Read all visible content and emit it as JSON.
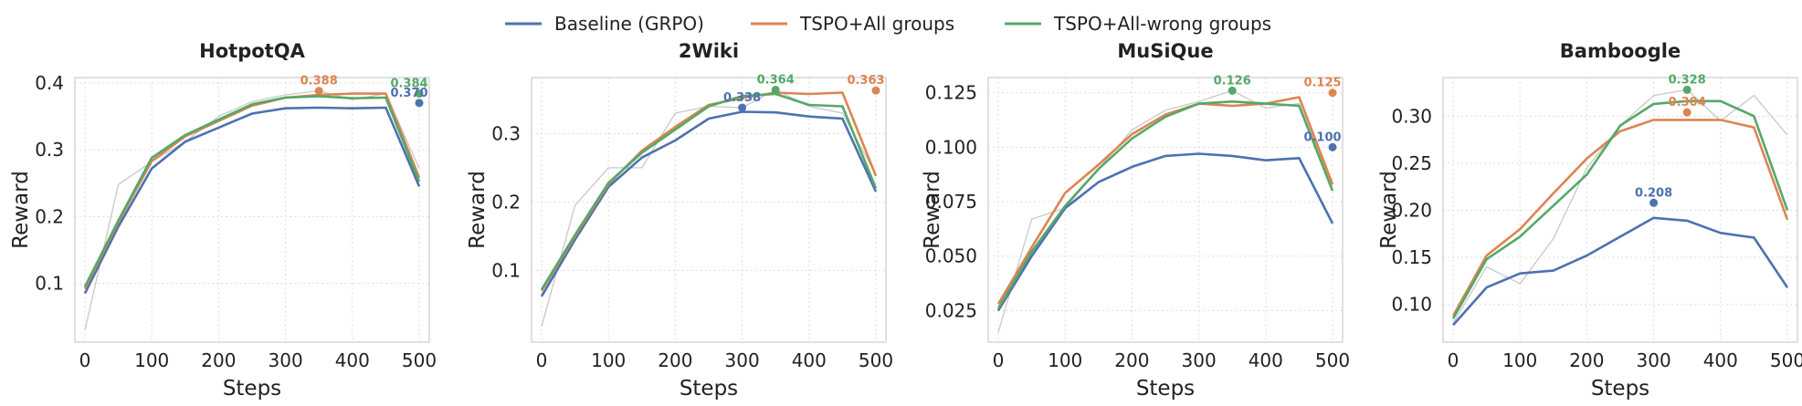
{
  "legend": [
    {
      "name": "Baseline (GRPO)",
      "color": "#4c72b0"
    },
    {
      "name": "TSPO+All groups",
      "color": "#dd8452"
    },
    {
      "name": "TSPO+All-wrong groups",
      "color": "#55a868"
    }
  ],
  "chart_data": [
    {
      "type": "line",
      "title": "HotpotQA",
      "xlabel": "Steps",
      "ylabel": "Reward",
      "xlim": [
        -15,
        515
      ],
      "ylim": [
        0.012,
        0.408
      ],
      "xticks": [
        0,
        100,
        200,
        300,
        400,
        500
      ],
      "yticks": [
        0.1,
        0.2,
        0.3,
        0.4
      ],
      "ytick_labels": [
        "0.1",
        "0.2",
        "0.3",
        "0.4"
      ],
      "x": [
        0,
        50,
        100,
        150,
        200,
        250,
        300,
        350,
        400,
        450,
        500
      ],
      "series": [
        {
          "name": "Baseline (GRPO)",
          "values": [
            0.085,
            0.185,
            0.272,
            0.312,
            0.333,
            0.354,
            0.362,
            0.363,
            0.362,
            0.363,
            0.245
          ]
        },
        {
          "name": "TSPO+All groups",
          "values": [
            0.092,
            0.192,
            0.283,
            0.32,
            0.343,
            0.366,
            0.378,
            0.382,
            0.384,
            0.384,
            0.258
          ]
        },
        {
          "name": "TSPO+All-wrong groups",
          "values": [
            0.095,
            0.194,
            0.288,
            0.322,
            0.345,
            0.368,
            0.378,
            0.38,
            0.377,
            0.378,
            0.252
          ]
        }
      ],
      "raw": [
        0.03,
        0.248,
        0.282,
        0.312,
        0.35,
        0.372,
        0.382,
        0.388,
        0.375,
        0.384,
        0.272
      ],
      "annotations": [
        {
          "series": "TSPO+All groups",
          "x": 350,
          "y": 0.388,
          "label": "0.388"
        },
        {
          "series": "TSPO+All-wrong groups",
          "x": 500,
          "y": 0.384,
          "label": "0.384"
        },
        {
          "series": "Baseline (GRPO)",
          "x": 500,
          "y": 0.37,
          "label": "0.370"
        }
      ]
    },
    {
      "type": "line",
      "title": "2Wiki",
      "xlabel": "Steps",
      "ylabel": "Reward",
      "xlim": [
        -15,
        515
      ],
      "ylim": [
        -0.005,
        0.382
      ],
      "xticks": [
        0,
        100,
        200,
        300,
        400,
        500
      ],
      "yticks": [
        0.1,
        0.2,
        0.3
      ],
      "ytick_labels": [
        "0.1",
        "0.2",
        "0.3"
      ],
      "x": [
        0,
        50,
        100,
        150,
        200,
        250,
        300,
        350,
        400,
        450,
        500
      ],
      "series": [
        {
          "name": "Baseline (GRPO)",
          "values": [
            0.062,
            0.145,
            0.222,
            0.265,
            0.29,
            0.322,
            0.332,
            0.331,
            0.325,
            0.322,
            0.215
          ]
        },
        {
          "name": "TSPO+All groups",
          "values": [
            0.07,
            0.15,
            0.226,
            0.275,
            0.31,
            0.342,
            0.352,
            0.36,
            0.358,
            0.36,
            0.238
          ]
        },
        {
          "name": "TSPO+All-wrong groups",
          "values": [
            0.072,
            0.152,
            0.228,
            0.272,
            0.306,
            0.34,
            0.355,
            0.358,
            0.342,
            0.34,
            0.22
          ]
        }
      ],
      "raw": [
        0.018,
        0.195,
        0.25,
        0.25,
        0.33,
        0.34,
        0.338,
        0.364,
        0.34,
        0.33,
        0.24
      ],
      "annotations": [
        {
          "series": "Baseline (GRPO)",
          "x": 300,
          "y": 0.338,
          "label": "0.338"
        },
        {
          "series": "TSPO+All-wrong groups",
          "x": 350,
          "y": 0.364,
          "label": "0.364"
        },
        {
          "series": "TSPO+All groups",
          "x": 500,
          "y": 0.363,
          "label": "0.363"
        }
      ]
    },
    {
      "type": "line",
      "title": "MuSiQue",
      "xlabel": "Steps",
      "ylabel": "Reward",
      "xlim": [
        -15,
        515
      ],
      "ylim": [
        0.0105,
        0.132
      ],
      "xticks": [
        0,
        100,
        200,
        300,
        400,
        500
      ],
      "yticks": [
        0.025,
        0.05,
        0.075,
        0.1,
        0.125
      ],
      "ytick_labels": [
        "0.025",
        "0.050",
        "0.075",
        "0.100",
        "0.125"
      ],
      "x": [
        0,
        50,
        100,
        150,
        200,
        250,
        300,
        350,
        400,
        450,
        500
      ],
      "series": [
        {
          "name": "Baseline (GRPO)",
          "values": [
            0.025,
            0.05,
            0.072,
            0.084,
            0.091,
            0.096,
            0.097,
            0.096,
            0.094,
            0.095,
            0.065
          ]
        },
        {
          "name": "TSPO+All groups",
          "values": [
            0.028,
            0.054,
            0.079,
            0.092,
            0.106,
            0.115,
            0.12,
            0.119,
            0.12,
            0.123,
            0.083
          ]
        },
        {
          "name": "TSPO+All-wrong groups",
          "values": [
            0.026,
            0.052,
            0.073,
            0.09,
            0.104,
            0.114,
            0.12,
            0.121,
            0.12,
            0.119,
            0.08
          ]
        }
      ],
      "raw": [
        0.015,
        0.067,
        0.072,
        0.09,
        0.108,
        0.117,
        0.121,
        0.126,
        0.118,
        0.12,
        0.082
      ],
      "annotations": [
        {
          "series": "TSPO+All-wrong groups",
          "x": 350,
          "y": 0.126,
          "label": "0.126"
        },
        {
          "series": "TSPO+All groups",
          "x": 500,
          "y": 0.125,
          "label": "0.125"
        },
        {
          "series": "Baseline (GRPO)",
          "x": 500,
          "y": 0.1,
          "label": "0.100"
        }
      ]
    },
    {
      "type": "line",
      "title": "Bamboogle",
      "xlabel": "Steps",
      "ylabel": "Reward",
      "xlim": [
        -15,
        515
      ],
      "ylim": [
        0.06,
        0.341
      ],
      "xticks": [
        0,
        100,
        200,
        300,
        400,
        500
      ],
      "yticks": [
        0.1,
        0.15,
        0.2,
        0.25,
        0.3
      ],
      "ytick_labels": [
        "0.10",
        "0.15",
        "0.20",
        "0.25",
        "0.30"
      ],
      "x": [
        0,
        50,
        100,
        150,
        200,
        250,
        300,
        350,
        400,
        450,
        500
      ],
      "series": [
        {
          "name": "Baseline (GRPO)",
          "values": [
            0.078,
            0.118,
            0.133,
            0.136,
            0.152,
            0.172,
            0.192,
            0.189,
            0.176,
            0.171,
            0.118
          ]
        },
        {
          "name": "TSPO+All groups",
          "values": [
            0.088,
            0.152,
            0.18,
            0.218,
            0.255,
            0.284,
            0.296,
            0.296,
            0.296,
            0.288,
            0.19
          ]
        },
        {
          "name": "TSPO+All-wrong groups",
          "values": [
            0.085,
            0.148,
            0.172,
            0.205,
            0.238,
            0.29,
            0.313,
            0.316,
            0.316,
            0.3,
            0.2
          ]
        }
      ],
      "raw": [
        0.08,
        0.14,
        0.122,
        0.17,
        0.245,
        0.29,
        0.322,
        0.328,
        0.295,
        0.322,
        0.28
      ],
      "annotations": [
        {
          "series": "Baseline (GRPO)",
          "x": 300,
          "y": 0.208,
          "label": "0.208"
        },
        {
          "series": "TSPO+All-wrong groups",
          "x": 350,
          "y": 0.328,
          "label": "0.328"
        },
        {
          "series": "TSPO+All groups",
          "x": 350,
          "y": 0.304,
          "label": "0.304"
        }
      ]
    }
  ]
}
